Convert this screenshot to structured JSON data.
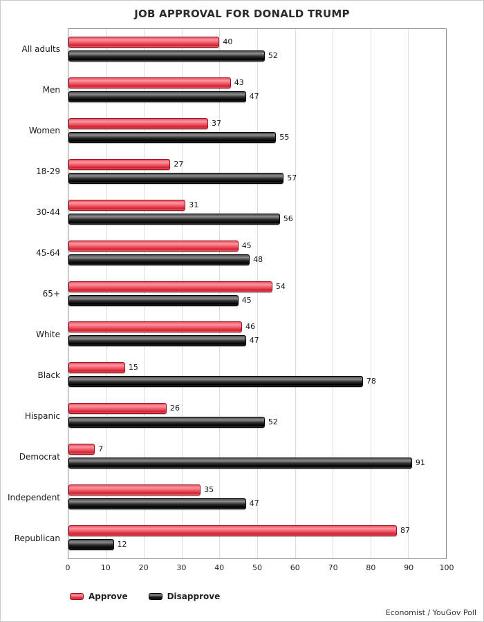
{
  "title": "JOB APPROVAL FOR DONALD TRUMP",
  "source": "Economist / YouGov Poll",
  "colors": {
    "approve": "#f4606c",
    "disapprove": "#1a1a1a",
    "gridline": "#dcdcdc",
    "plot_border": "#8c8c8c"
  },
  "chart_data": {
    "type": "bar",
    "orientation": "horizontal",
    "title": "JOB APPROVAL FOR DONALD TRUMP",
    "categories": [
      "All adults",
      "Men",
      "Women",
      "18-29",
      "30-44",
      "45-64",
      "65+",
      "White",
      "Black",
      "Hispanic",
      "Democrat",
      "Independent",
      "Republican"
    ],
    "series": [
      {
        "name": "Approve",
        "color": "#f4606c",
        "values": [
          40,
          43,
          37,
          27,
          31,
          45,
          54,
          46,
          15,
          26,
          7,
          35,
          87
        ]
      },
      {
        "name": "Disapprove",
        "color": "#1a1a1a",
        "values": [
          52,
          47,
          55,
          57,
          56,
          48,
          45,
          47,
          78,
          52,
          91,
          47,
          12
        ]
      }
    ],
    "xlim": [
      0,
      100
    ],
    "xticks": [
      0,
      10,
      20,
      30,
      40,
      50,
      60,
      70,
      80,
      90,
      100
    ],
    "grid": true,
    "legend_position": "bottom",
    "annotation": "Economist / YouGov Poll"
  }
}
